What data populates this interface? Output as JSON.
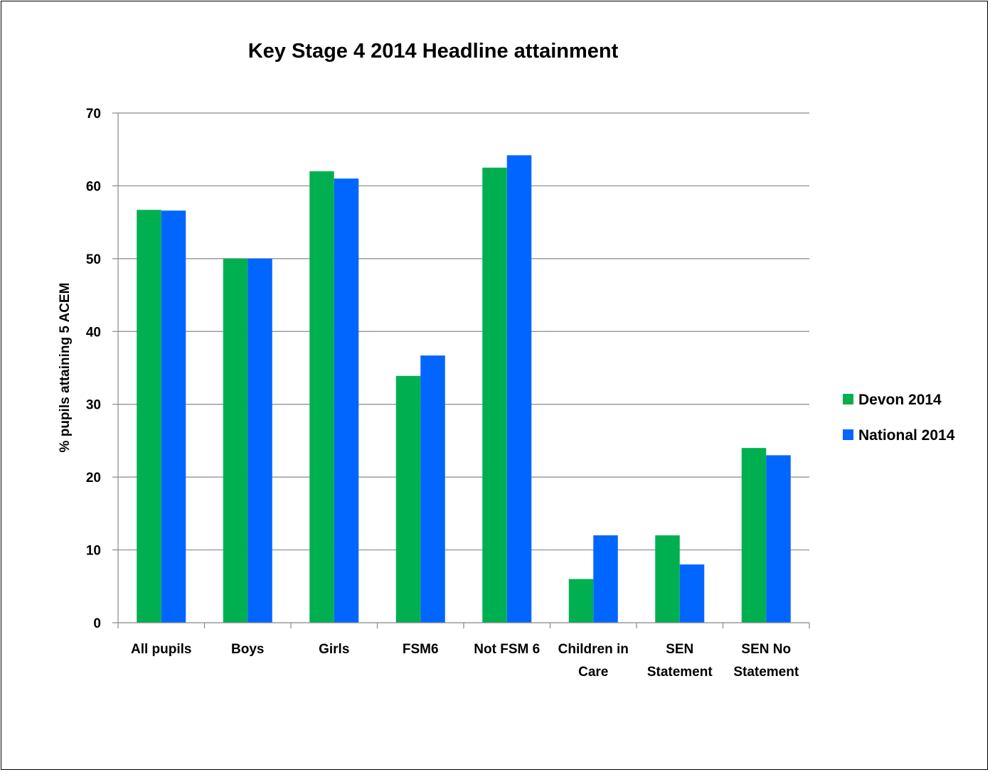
{
  "chart_data": {
    "type": "bar",
    "title": "Key Stage 4 2014 Headline attainment",
    "xlabel": "",
    "ylabel": "% pupils attaining 5 ACEM",
    "ylim": [
      0,
      70
    ],
    "yticks": [
      0,
      10,
      20,
      30,
      40,
      50,
      60,
      70
    ],
    "grid": true,
    "legend_position": "right",
    "categories": [
      [
        "All pupils"
      ],
      [
        "Boys"
      ],
      [
        "Girls"
      ],
      [
        "FSM6"
      ],
      [
        "Not FSM 6"
      ],
      [
        "Children in",
        "Care"
      ],
      [
        "SEN",
        "Statement"
      ],
      [
        "SEN No",
        "Statement"
      ]
    ],
    "series": [
      {
        "name": "Devon 2014",
        "color": "#00b050",
        "values": [
          56.7,
          50,
          62,
          33.9,
          62.5,
          6,
          12,
          24
        ]
      },
      {
        "name": "National 2014",
        "color": "#0066ff",
        "values": [
          56.6,
          50,
          61,
          36.7,
          64.2,
          12,
          8,
          23
        ]
      }
    ]
  }
}
